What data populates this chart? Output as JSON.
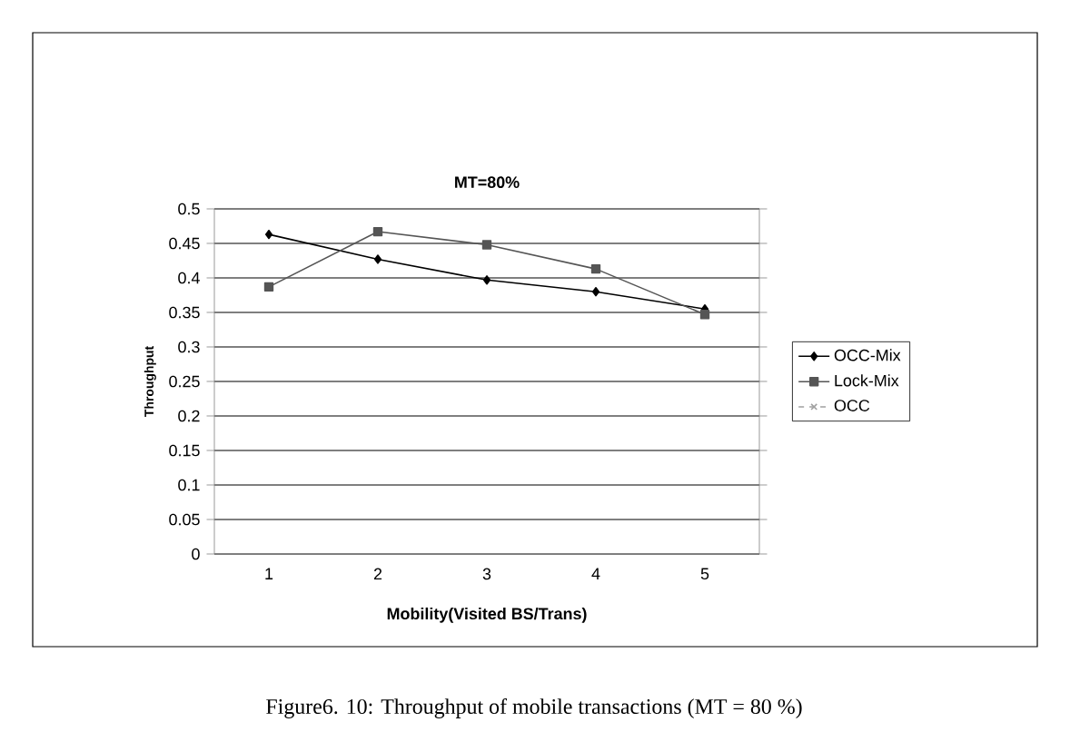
{
  "chart_data": {
    "type": "line",
    "title": "MT=80%",
    "xlabel": "Mobility(Visited BS/Trans)",
    "ylabel": "Throughput",
    "categories": [
      "1",
      "2",
      "3",
      "4",
      "5"
    ],
    "series": [
      {
        "name": "OCC-Mix",
        "color": "#000000",
        "marker": "diamond",
        "values": [
          0.463,
          0.427,
          0.397,
          0.38,
          0.355
        ]
      },
      {
        "name": "Lock-Mix",
        "color": "#555555",
        "marker": "square",
        "values": [
          0.387,
          0.467,
          0.448,
          0.413,
          0.347
        ]
      },
      {
        "name": "OCC",
        "color": "#a0a0a0",
        "marker": "cross",
        "line_style": "dashed",
        "values": [
          null,
          null,
          null,
          null,
          null
        ]
      }
    ],
    "ylim": [
      0,
      0.5
    ],
    "yticks": [
      0,
      0.05,
      0.1,
      0.15,
      0.2,
      0.25,
      0.3,
      0.35,
      0.4,
      0.45,
      0.5
    ],
    "grid": "y",
    "legend": "right",
    "annotations": [
      "Figure6. 10: Throughput of mobile transactions (MT = 80 %)"
    ]
  }
}
